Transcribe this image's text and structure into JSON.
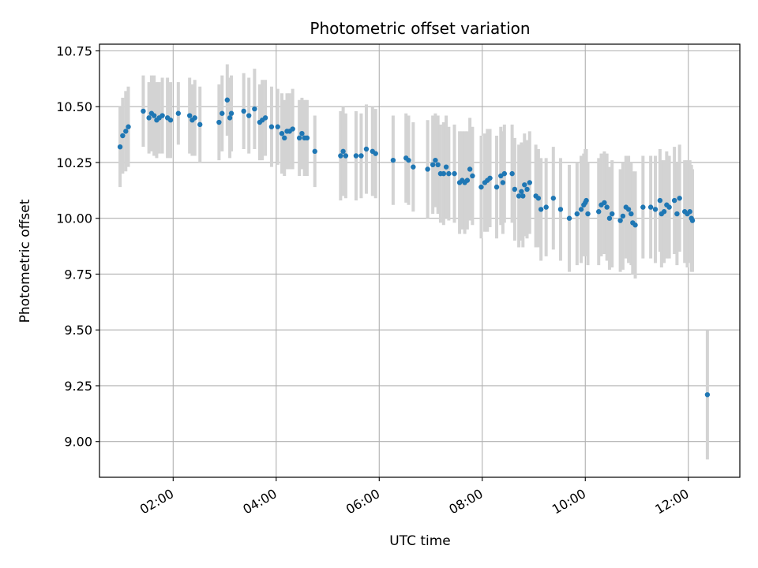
{
  "chart_data": {
    "type": "scatter",
    "title": "Photometric offset variation",
    "xlabel": "UTC time",
    "ylabel": "Photometric offset",
    "x_unit": "hours UTC",
    "xlim": [
      0.57,
      13.0
    ],
    "ylim": [
      8.84,
      10.78
    ],
    "x_ticks": [
      {
        "value": 2,
        "label": "02:00"
      },
      {
        "value": 4,
        "label": "04:00"
      },
      {
        "value": 6,
        "label": "06:00"
      },
      {
        "value": 8,
        "label": "08:00"
      },
      {
        "value": 10,
        "label": "10:00"
      },
      {
        "value": 12,
        "label": "12:00"
      }
    ],
    "y_ticks": [
      {
        "value": 9.0,
        "label": "9.00"
      },
      {
        "value": 9.25,
        "label": "9.25"
      },
      {
        "value": 9.5,
        "label": "9.50"
      },
      {
        "value": 9.75,
        "label": "9.75"
      },
      {
        "value": 10.0,
        "label": "10.00"
      },
      {
        "value": 10.25,
        "label": "10.25"
      },
      {
        "value": 10.5,
        "label": "10.50"
      },
      {
        "value": 10.75,
        "label": "10.75"
      }
    ],
    "grid": true,
    "marker_color": "#1f77b4",
    "errorbar_color": "#d3d3d3",
    "points": [
      {
        "x": 0.97,
        "y": 10.32,
        "err": 0.18
      },
      {
        "x": 1.02,
        "y": 10.37,
        "err": 0.17
      },
      {
        "x": 1.08,
        "y": 10.39,
        "err": 0.18
      },
      {
        "x": 1.13,
        "y": 10.41,
        "err": 0.18
      },
      {
        "x": 1.42,
        "y": 10.48,
        "err": 0.16
      },
      {
        "x": 1.53,
        "y": 10.45,
        "err": 0.16
      },
      {
        "x": 1.58,
        "y": 10.47,
        "err": 0.17
      },
      {
        "x": 1.63,
        "y": 10.46,
        "err": 0.18
      },
      {
        "x": 1.68,
        "y": 10.44,
        "err": 0.17
      },
      {
        "x": 1.73,
        "y": 10.45,
        "err": 0.16
      },
      {
        "x": 1.79,
        "y": 10.46,
        "err": 0.17
      },
      {
        "x": 1.89,
        "y": 10.45,
        "err": 0.18
      },
      {
        "x": 1.95,
        "y": 10.44,
        "err": 0.17
      },
      {
        "x": 2.1,
        "y": 10.47,
        "err": 0.14
      },
      {
        "x": 2.32,
        "y": 10.46,
        "err": 0.17
      },
      {
        "x": 2.37,
        "y": 10.44,
        "err": 0.16
      },
      {
        "x": 2.42,
        "y": 10.45,
        "err": 0.17
      },
      {
        "x": 2.52,
        "y": 10.42,
        "err": 0.17
      },
      {
        "x": 2.89,
        "y": 10.43,
        "err": 0.17
      },
      {
        "x": 2.95,
        "y": 10.47,
        "err": 0.17
      },
      {
        "x": 3.05,
        "y": 10.53,
        "err": 0.16
      },
      {
        "x": 3.1,
        "y": 10.45,
        "err": 0.18
      },
      {
        "x": 3.13,
        "y": 10.47,
        "err": 0.17
      },
      {
        "x": 3.37,
        "y": 10.48,
        "err": 0.17
      },
      {
        "x": 3.47,
        "y": 10.46,
        "err": 0.17
      },
      {
        "x": 3.58,
        "y": 10.49,
        "err": 0.18
      },
      {
        "x": 3.68,
        "y": 10.43,
        "err": 0.17
      },
      {
        "x": 3.73,
        "y": 10.44,
        "err": 0.18
      },
      {
        "x": 3.79,
        "y": 10.45,
        "err": 0.17
      },
      {
        "x": 3.91,
        "y": 10.41,
        "err": 0.18
      },
      {
        "x": 4.03,
        "y": 10.41,
        "err": 0.17
      },
      {
        "x": 4.11,
        "y": 10.38,
        "err": 0.18
      },
      {
        "x": 4.16,
        "y": 10.36,
        "err": 0.17
      },
      {
        "x": 4.21,
        "y": 10.39,
        "err": 0.17
      },
      {
        "x": 4.26,
        "y": 10.39,
        "err": 0.17
      },
      {
        "x": 4.32,
        "y": 10.4,
        "err": 0.18
      },
      {
        "x": 4.45,
        "y": 10.36,
        "err": 0.17
      },
      {
        "x": 4.5,
        "y": 10.38,
        "err": 0.16
      },
      {
        "x": 4.55,
        "y": 10.36,
        "err": 0.17
      },
      {
        "x": 4.6,
        "y": 10.36,
        "err": 0.17
      },
      {
        "x": 4.75,
        "y": 10.3,
        "err": 0.16
      },
      {
        "x": 5.25,
        "y": 10.28,
        "err": 0.2
      },
      {
        "x": 5.3,
        "y": 10.3,
        "err": 0.2
      },
      {
        "x": 5.35,
        "y": 10.28,
        "err": 0.19
      },
      {
        "x": 5.55,
        "y": 10.28,
        "err": 0.2
      },
      {
        "x": 5.65,
        "y": 10.28,
        "err": 0.19
      },
      {
        "x": 5.75,
        "y": 10.31,
        "err": 0.2
      },
      {
        "x": 5.87,
        "y": 10.3,
        "err": 0.2
      },
      {
        "x": 5.93,
        "y": 10.29,
        "err": 0.2
      },
      {
        "x": 6.27,
        "y": 10.26,
        "err": 0.2
      },
      {
        "x": 6.52,
        "y": 10.27,
        "err": 0.2
      },
      {
        "x": 6.57,
        "y": 10.26,
        "err": 0.2
      },
      {
        "x": 6.66,
        "y": 10.23,
        "err": 0.2
      },
      {
        "x": 6.94,
        "y": 10.22,
        "err": 0.22
      },
      {
        "x": 7.04,
        "y": 10.24,
        "err": 0.22
      },
      {
        "x": 7.09,
        "y": 10.26,
        "err": 0.21
      },
      {
        "x": 7.14,
        "y": 10.24,
        "err": 0.22
      },
      {
        "x": 7.19,
        "y": 10.2,
        "err": 0.22
      },
      {
        "x": 7.25,
        "y": 10.2,
        "err": 0.23
      },
      {
        "x": 7.3,
        "y": 10.23,
        "err": 0.23
      },
      {
        "x": 7.35,
        "y": 10.2,
        "err": 0.21
      },
      {
        "x": 7.46,
        "y": 10.2,
        "err": 0.22
      },
      {
        "x": 7.56,
        "y": 10.16,
        "err": 0.23
      },
      {
        "x": 7.61,
        "y": 10.17,
        "err": 0.22
      },
      {
        "x": 7.66,
        "y": 10.16,
        "err": 0.23
      },
      {
        "x": 7.71,
        "y": 10.17,
        "err": 0.22
      },
      {
        "x": 7.76,
        "y": 10.22,
        "err": 0.23
      },
      {
        "x": 7.81,
        "y": 10.19,
        "err": 0.22
      },
      {
        "x": 7.98,
        "y": 10.14,
        "err": 0.23
      },
      {
        "x": 8.05,
        "y": 10.16,
        "err": 0.22
      },
      {
        "x": 8.1,
        "y": 10.17,
        "err": 0.23
      },
      {
        "x": 8.15,
        "y": 10.18,
        "err": 0.22
      },
      {
        "x": 8.28,
        "y": 10.14,
        "err": 0.23
      },
      {
        "x": 8.36,
        "y": 10.19,
        "err": 0.22
      },
      {
        "x": 8.4,
        "y": 10.16,
        "err": 0.23
      },
      {
        "x": 8.43,
        "y": 10.2,
        "err": 0.22
      },
      {
        "x": 8.58,
        "y": 10.2,
        "err": 0.22
      },
      {
        "x": 8.63,
        "y": 10.13,
        "err": 0.23
      },
      {
        "x": 8.71,
        "y": 10.1,
        "err": 0.23
      },
      {
        "x": 8.76,
        "y": 10.12,
        "err": 0.22
      },
      {
        "x": 8.79,
        "y": 10.1,
        "err": 0.23
      },
      {
        "x": 8.82,
        "y": 10.15,
        "err": 0.23
      },
      {
        "x": 8.87,
        "y": 10.13,
        "err": 0.22
      },
      {
        "x": 8.92,
        "y": 10.16,
        "err": 0.23
      },
      {
        "x": 9.04,
        "y": 10.1,
        "err": 0.23
      },
      {
        "x": 9.09,
        "y": 10.09,
        "err": 0.22
      },
      {
        "x": 9.14,
        "y": 10.04,
        "err": 0.23
      },
      {
        "x": 9.24,
        "y": 10.05,
        "err": 0.22
      },
      {
        "x": 9.38,
        "y": 10.09,
        "err": 0.23
      },
      {
        "x": 9.52,
        "y": 10.04,
        "err": 0.23
      },
      {
        "x": 9.69,
        "y": 10.0,
        "err": 0.24
      },
      {
        "x": 9.84,
        "y": 10.02,
        "err": 0.23
      },
      {
        "x": 9.92,
        "y": 10.04,
        "err": 0.24
      },
      {
        "x": 9.97,
        "y": 10.06,
        "err": 0.23
      },
      {
        "x": 10.0,
        "y": 10.07,
        "err": 0.24
      },
      {
        "x": 10.02,
        "y": 10.08,
        "err": 0.23
      },
      {
        "x": 10.05,
        "y": 10.02,
        "err": 0.23
      },
      {
        "x": 10.26,
        "y": 10.03,
        "err": 0.24
      },
      {
        "x": 10.31,
        "y": 10.06,
        "err": 0.23
      },
      {
        "x": 10.37,
        "y": 10.07,
        "err": 0.23
      },
      {
        "x": 10.42,
        "y": 10.05,
        "err": 0.24
      },
      {
        "x": 10.47,
        "y": 10.0,
        "err": 0.23
      },
      {
        "x": 10.52,
        "y": 10.02,
        "err": 0.24
      },
      {
        "x": 10.68,
        "y": 9.99,
        "err": 0.23
      },
      {
        "x": 10.73,
        "y": 10.01,
        "err": 0.24
      },
      {
        "x": 10.79,
        "y": 10.05,
        "err": 0.23
      },
      {
        "x": 10.84,
        "y": 10.04,
        "err": 0.24
      },
      {
        "x": 10.89,
        "y": 10.02,
        "err": 0.23
      },
      {
        "x": 10.92,
        "y": 9.98,
        "err": 0.23
      },
      {
        "x": 10.97,
        "y": 9.97,
        "err": 0.24
      },
      {
        "x": 11.12,
        "y": 10.05,
        "err": 0.23
      },
      {
        "x": 11.27,
        "y": 10.05,
        "err": 0.23
      },
      {
        "x": 11.36,
        "y": 10.04,
        "err": 0.24
      },
      {
        "x": 11.45,
        "y": 10.08,
        "err": 0.23
      },
      {
        "x": 11.48,
        "y": 10.02,
        "err": 0.24
      },
      {
        "x": 11.53,
        "y": 10.03,
        "err": 0.23
      },
      {
        "x": 11.58,
        "y": 10.06,
        "err": 0.24
      },
      {
        "x": 11.63,
        "y": 10.05,
        "err": 0.23
      },
      {
        "x": 11.73,
        "y": 10.08,
        "err": 0.24
      },
      {
        "x": 11.78,
        "y": 10.02,
        "err": 0.23
      },
      {
        "x": 11.83,
        "y": 10.09,
        "err": 0.24
      },
      {
        "x": 11.93,
        "y": 10.03,
        "err": 0.23
      },
      {
        "x": 11.98,
        "y": 10.02,
        "err": 0.24
      },
      {
        "x": 12.03,
        "y": 10.03,
        "err": 0.23
      },
      {
        "x": 12.06,
        "y": 10.0,
        "err": 0.24
      },
      {
        "x": 12.08,
        "y": 9.99,
        "err": 0.23
      },
      {
        "x": 12.37,
        "y": 9.21,
        "err": 0.29
      }
    ]
  }
}
